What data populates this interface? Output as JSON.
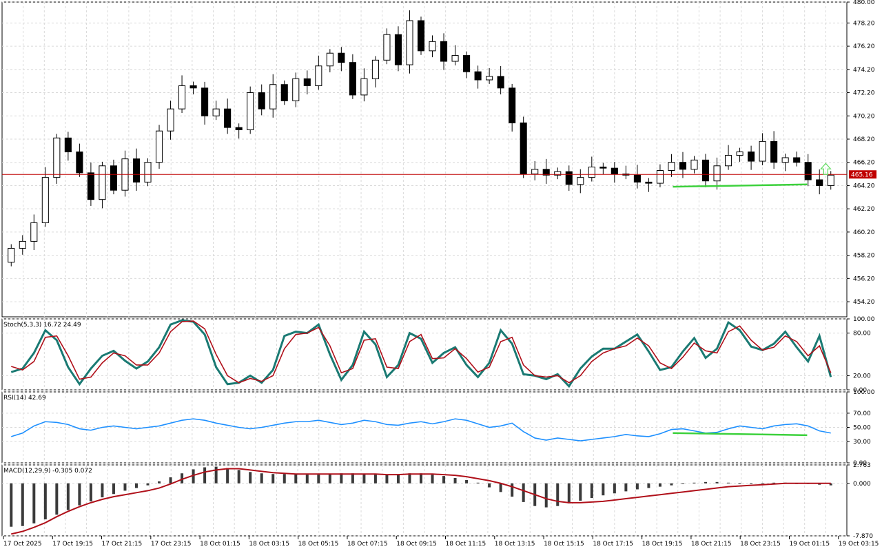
{
  "chart_data": [
    {
      "type": "candlestick",
      "pane": "price",
      "current_price": 465.16,
      "current_price_label": "465.16",
      "ylim": [
        452.9,
        480.0
      ],
      "yticks": [
        "480.00",
        "478.20",
        "476.20",
        "474.20",
        "472.20",
        "470.20",
        "468.20",
        "466.20",
        "464.20",
        "462.20",
        "460.20",
        "458.20",
        "456.20",
        "454.20"
      ],
      "ytick_values": [
        480.0,
        478.2,
        476.2,
        474.2,
        472.2,
        470.2,
        468.2,
        466.2,
        464.2,
        462.2,
        460.2,
        458.2,
        456.2,
        454.2
      ],
      "xticks": [
        "17 Oct 2025",
        "17 Oct 19:15",
        "17 Oct 21:15",
        "17 Oct 23:15",
        "18 Oct 01:15",
        "18 Oct 03:15",
        "18 Oct 05:15",
        "18 Oct 07:15",
        "18 Oct 09:15",
        "18 Oct 11:15",
        "18 Oct 13:15",
        "18 Oct 15:15",
        "18 Oct 17:15",
        "18 Oct 19:15",
        "18 Oct 21:15",
        "18 Oct 23:15",
        "19 Oct 01:15",
        "19 Oct 03:15"
      ],
      "close_path": [
        458.8,
        459.4,
        461.0,
        464.9,
        468.3,
        467.1,
        465.3,
        463.0,
        465.9,
        463.8,
        466.5,
        464.5,
        466.2,
        468.9,
        470.8,
        472.8,
        472.6,
        470.2,
        470.8,
        469.2,
        469.0,
        472.2,
        470.8,
        472.9,
        471.5,
        473.4,
        472.8,
        474.5,
        475.6,
        474.8,
        472.0,
        473.4,
        475.0,
        477.2,
        474.6,
        478.4,
        475.8,
        476.6,
        474.9,
        475.4,
        474.0,
        473.3,
        473.6,
        472.6,
        469.6,
        465.2,
        465.6,
        465.1,
        465.4,
        464.3,
        464.9,
        465.8,
        465.7,
        465.2,
        465.1,
        464.5,
        464.4,
        465.5,
        466.2,
        465.6,
        466.4,
        464.6,
        465.9,
        466.8,
        467.1,
        466.3,
        468.0,
        466.2,
        466.6,
        466.2,
        464.7,
        464.2,
        465.1
      ],
      "trendline_points": [
        [
          0.794,
          464.1
        ],
        [
          0.953,
          464.3
        ]
      ],
      "arrow_up_at": 0.975
    },
    {
      "type": "line",
      "pane": "stochastic",
      "label": "Stoch(5,3,3) 16.72 24.49",
      "ylim": [
        0,
        100
      ],
      "yticks": [
        "100.00",
        "80.00",
        "20.00",
        "0.00"
      ],
      "ytick_values": [
        100,
        80,
        20,
        0
      ],
      "series": [
        {
          "values": [
            25,
            30,
            52,
            84,
            70,
            32,
            8,
            30,
            48,
            55,
            41,
            30,
            40,
            60,
            92,
            98,
            96,
            78,
            32,
            8,
            10,
            20,
            10,
            28,
            76,
            82,
            80,
            92,
            50,
            14,
            35,
            82,
            64,
            18,
            35,
            80,
            72,
            38,
            52,
            60,
            35,
            18,
            38,
            84,
            65,
            22,
            20,
            15,
            22,
            5,
            30,
            47,
            58,
            58,
            68,
            78,
            54,
            28,
            32,
            54,
            73,
            45,
            58,
            95,
            84,
            61,
            56,
            65,
            82,
            60,
            40,
            76,
            18
          ],
          "color": "#1a7a73"
        },
        {
          "values": [
            33,
            28,
            40,
            74,
            76,
            48,
            15,
            18,
            38,
            52,
            48,
            35,
            35,
            52,
            82,
            96,
            97,
            86,
            50,
            20,
            10,
            16,
            12,
            20,
            58,
            78,
            80,
            88,
            62,
            24,
            30,
            70,
            72,
            32,
            30,
            68,
            78,
            44,
            45,
            58,
            44,
            25,
            32,
            68,
            74,
            35,
            20,
            18,
            20,
            10,
            20,
            40,
            52,
            58,
            62,
            73,
            62,
            38,
            30,
            46,
            66,
            55,
            52,
            82,
            90,
            70,
            56,
            60,
            76,
            68,
            48,
            62,
            24
          ],
          "color": "#b0101a"
        }
      ]
    },
    {
      "type": "line",
      "pane": "rsi",
      "label": "RSI(14) 42.69",
      "ylim": [
        0,
        100
      ],
      "yticks": [
        "100.00",
        "70.00",
        "50.00",
        "30.00",
        "0.00"
      ],
      "ytick_values": [
        100,
        70,
        50,
        30,
        0
      ],
      "series": [
        {
          "values": [
            37,
            42,
            52,
            58,
            57,
            54,
            48,
            46,
            50,
            52,
            50,
            48,
            50,
            52,
            56,
            60,
            62,
            60,
            56,
            53,
            50,
            48,
            50,
            53,
            56,
            58,
            58,
            60,
            57,
            54,
            56,
            60,
            58,
            54,
            53,
            56,
            58,
            55,
            58,
            62,
            60,
            55,
            50,
            52,
            56,
            44,
            35,
            32,
            35,
            33,
            31,
            33,
            35,
            37,
            40,
            38,
            37,
            41,
            47,
            48,
            45,
            42,
            43,
            48,
            52,
            50,
            48,
            52,
            54,
            55,
            52,
            45,
            42
          ],
          "color": "#1e90ff"
        }
      ],
      "trendline_points": [
        [
          0.794,
          42
        ],
        [
          0.953,
          39
        ]
      ]
    },
    {
      "type": "bar",
      "pane": "macd",
      "label": "MACD(12,29,9) -0.305 0.072",
      "ylim": [
        -7.87,
        2.763
      ],
      "yticks": [
        "2.763",
        "0.000",
        "-7.870"
      ],
      "ytick_values": [
        2.763,
        0.0,
        -7.87
      ],
      "histogram": [
        -6.5,
        -6.4,
        -6.0,
        -5.4,
        -4.7,
        -4.0,
        -3.3,
        -2.7,
        -2.1,
        -1.6,
        -1.1,
        -0.7,
        -0.3,
        0.3,
        0.9,
        1.5,
        2.1,
        2.4,
        2.5,
        2.3,
        2.0,
        1.7,
        1.5,
        1.4,
        1.4,
        1.4,
        1.3,
        1.3,
        1.4,
        1.5,
        1.5,
        1.4,
        1.3,
        1.3,
        1.4,
        1.5,
        1.5,
        1.3,
        1.1,
        0.8,
        0.5,
        0.1,
        -0.6,
        -1.3,
        -2.0,
        -2.8,
        -3.4,
        -3.6,
        -3.4,
        -3.0,
        -2.6,
        -2.2,
        -1.8,
        -1.5,
        -1.2,
        -0.9,
        -0.7,
        -0.5,
        -0.3,
        -0.1,
        0.1,
        0.2,
        0.2,
        0.1,
        0.0,
        0.0,
        0.0,
        0.1,
        0.1,
        0.0,
        -0.1,
        -0.2,
        -0.3
      ],
      "signal": [
        -7.6,
        -7.2,
        -6.6,
        -5.9,
        -5.0,
        -4.2,
        -3.5,
        -2.9,
        -2.4,
        -2.0,
        -1.7,
        -1.4,
        -1.1,
        -0.7,
        -0.1,
        0.6,
        1.2,
        1.7,
        2.0,
        2.2,
        2.2,
        2.0,
        1.8,
        1.6,
        1.5,
        1.4,
        1.4,
        1.4,
        1.4,
        1.4,
        1.4,
        1.4,
        1.4,
        1.3,
        1.3,
        1.4,
        1.4,
        1.4,
        1.3,
        1.2,
        1.0,
        0.7,
        0.4,
        0.0,
        -0.5,
        -1.1,
        -1.7,
        -2.3,
        -2.7,
        -2.9,
        -2.9,
        -2.8,
        -2.7,
        -2.5,
        -2.3,
        -2.1,
        -1.9,
        -1.7,
        -1.5,
        -1.3,
        -1.1,
        -0.9,
        -0.7,
        -0.5,
        -0.4,
        -0.3,
        -0.2,
        -0.1,
        0.0,
        0.0,
        0.0,
        0.0,
        0.0
      ]
    }
  ],
  "colors": {
    "up_candle": "#ffffff",
    "down_candle": "#000000",
    "price_line": "#c00000",
    "trendline": "#3cd13c",
    "arrow": "#66dd66",
    "grid": "#d9d9d9"
  }
}
